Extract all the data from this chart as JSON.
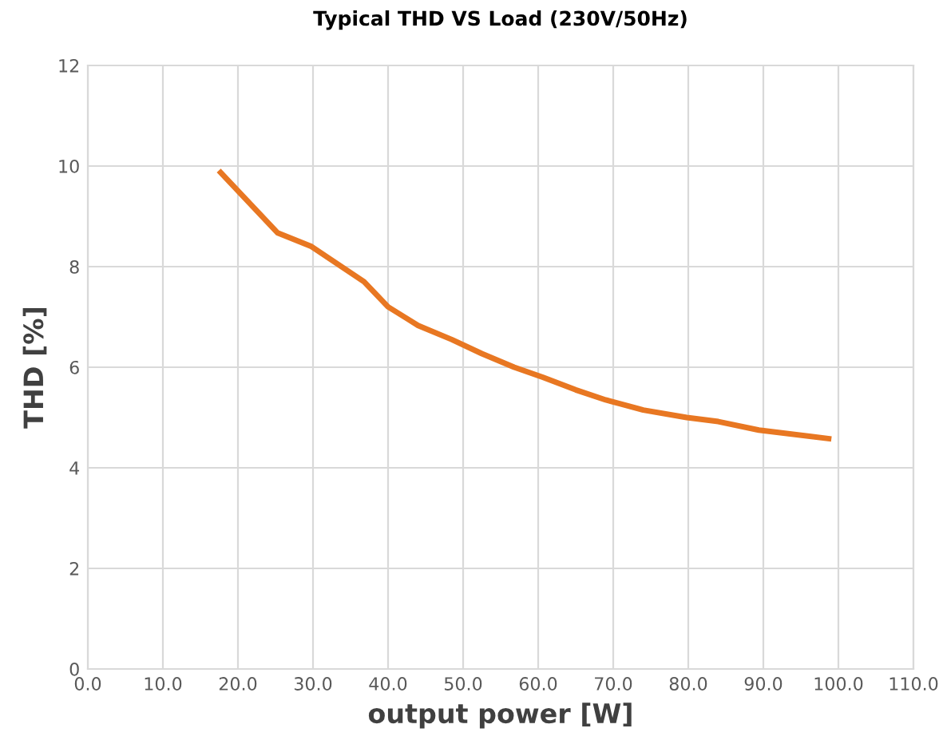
{
  "chart_data": {
    "type": "line",
    "title": "Typical THD VS Load (230V/50Hz)",
    "xlabel": "output power [W]",
    "ylabel": "THD [%]",
    "series": [
      {
        "color": "#e87722",
        "x": [
          17.7,
          25.3,
          29.8,
          36.8,
          40.0,
          44.0,
          48.5,
          52.5,
          56.8,
          60.6,
          65.0,
          69.0,
          74.0,
          79.8,
          84.0,
          89.4,
          98.7
        ],
        "values": [
          9.87,
          8.67,
          8.4,
          7.7,
          7.2,
          6.83,
          6.55,
          6.27,
          6.0,
          5.8,
          5.55,
          5.35,
          5.15,
          5.0,
          4.92,
          4.75,
          4.58
        ]
      }
    ],
    "xlim": [
      0,
      110
    ],
    "ylim": [
      0,
      12
    ],
    "xticks": [
      {
        "value": 0,
        "label": "0.0"
      },
      {
        "value": 10,
        "label": "10.0"
      },
      {
        "value": 20,
        "label": "20.0"
      },
      {
        "value": 30,
        "label": "30.0"
      },
      {
        "value": 40,
        "label": "40.0"
      },
      {
        "value": 50,
        "label": "50.0"
      },
      {
        "value": 60,
        "label": "60.0"
      },
      {
        "value": 70,
        "label": "70.0"
      },
      {
        "value": 80,
        "label": "80.0"
      },
      {
        "value": 90,
        "label": "90.0"
      },
      {
        "value": 100,
        "label": "100.0"
      },
      {
        "value": 110,
        "label": "110.0"
      }
    ],
    "yticks": [
      0,
      2,
      4,
      6,
      8,
      10,
      12
    ],
    "grid": true,
    "marker": "none",
    "line_style": "solid"
  }
}
